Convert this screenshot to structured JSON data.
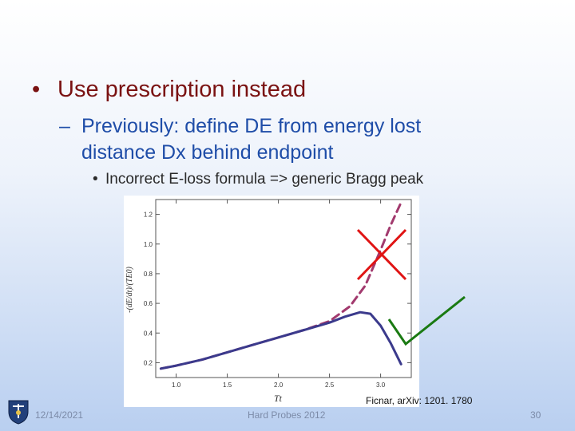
{
  "slide": {
    "bullet1": {
      "glyph": "•",
      "text": "Use prescription instead"
    },
    "bullet2": {
      "glyph": "–",
      "line1": "Previously: define DE from energy lost",
      "line2": "distance Dx behind endpoint"
    },
    "bullet3": {
      "glyph": "•",
      "text": "Incorrect E-loss formula => generic Bragg peak"
    }
  },
  "chart_data": {
    "type": "line",
    "xlabel": "Tt",
    "ylabel": "-(dE/dt)/(TE0)",
    "xlim": [
      0.8,
      3.3
    ],
    "ylim": [
      0.1,
      1.3
    ],
    "xticks": [
      1.0,
      1.5,
      2.0,
      2.5,
      3.0
    ],
    "yticks": [
      0.2,
      0.4,
      0.6,
      0.8,
      1.0,
      1.2
    ],
    "series": [
      {
        "style": "dashed",
        "color": "#a23a6e",
        "x": [
          0.85,
          1.0,
          1.25,
          1.5,
          1.75,
          2.0,
          2.25,
          2.5,
          2.7,
          2.85,
          3.0,
          3.1,
          3.2
        ],
        "y": [
          0.16,
          0.18,
          0.22,
          0.27,
          0.32,
          0.37,
          0.42,
          0.48,
          0.58,
          0.72,
          0.96,
          1.13,
          1.28
        ]
      },
      {
        "style": "solid",
        "color": "#3b3a8c",
        "x": [
          0.85,
          1.0,
          1.25,
          1.5,
          1.75,
          2.0,
          2.25,
          2.5,
          2.65,
          2.8,
          2.9,
          3.0,
          3.1,
          3.2
        ],
        "y": [
          0.16,
          0.18,
          0.22,
          0.27,
          0.32,
          0.37,
          0.42,
          0.47,
          0.51,
          0.54,
          0.53,
          0.45,
          0.33,
          0.19
        ]
      }
    ]
  },
  "annotations": {
    "cross_color": "#e01414",
    "check_color": "#1a7a12"
  },
  "footer": {
    "date": "12/14/2021",
    "center": "Hard Probes 2012",
    "page": "30",
    "citation": "Ficnar, arXiv: 1201. 1780",
    "logo_icon": "university-crest-icon"
  }
}
